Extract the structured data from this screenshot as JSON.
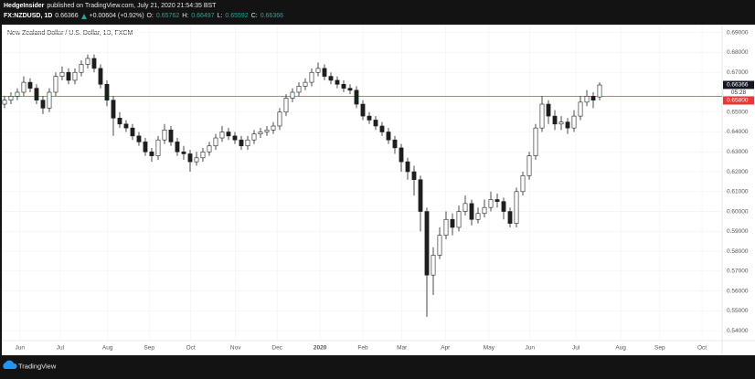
{
  "header": {
    "author": "HedgeInsider",
    "published": "published on TradingView.com, July 21, 2020 21:54:35 BST",
    "symbol": "FX:NZDUSD, 1D",
    "last": "0.66366",
    "change": "+0.00604 (+0.92%)",
    "open_label": "O:",
    "open": "0.65762",
    "high_label": "H:",
    "high": "0.66497",
    "low_label": "L:",
    "low": "0.65592",
    "close_label": "C:",
    "close": "0.66366"
  },
  "footer": {
    "brand": "TradingView"
  },
  "chart_data": {
    "type": "candlestick",
    "title": "New Zealand Dollar / U.S. Dollar, 1D, FXCM",
    "up_color": "#ffffff",
    "down_color": "#1e1e1e",
    "wick_color": "#1e1e1e",
    "grid": true,
    "ylim": [
      0.535,
      0.694
    ],
    "xlim": [
      -0.71,
      112.14
    ],
    "yticks": [
      {
        "value": 0.69,
        "label": "0.69000"
      },
      {
        "value": 0.68,
        "label": "0.68000"
      },
      {
        "value": 0.67,
        "label": "0.67000"
      },
      {
        "value": 0.65,
        "label": "0.65000"
      },
      {
        "value": 0.64,
        "label": "0.64000"
      },
      {
        "value": 0.63,
        "label": "0.63000"
      },
      {
        "value": 0.62,
        "label": "0.62000"
      },
      {
        "value": 0.61,
        "label": "0.61000"
      },
      {
        "value": 0.6,
        "label": "0.60000"
      },
      {
        "value": 0.59,
        "label": "0.59000"
      },
      {
        "value": 0.58,
        "label": "0.58000"
      },
      {
        "value": 0.57,
        "label": "0.57000"
      },
      {
        "value": 0.56,
        "label": "0.56000"
      },
      {
        "value": 0.55,
        "label": "0.55000"
      },
      {
        "value": 0.54,
        "label": "0.54000"
      }
    ],
    "xticks": [
      {
        "value": 2.4,
        "label": "Jun"
      },
      {
        "value": 8.7,
        "label": "Jul"
      },
      {
        "value": 16.1,
        "label": "Aug"
      },
      {
        "value": 22.6,
        "label": "Sep"
      },
      {
        "value": 29.1,
        "label": "Oct"
      },
      {
        "value": 36.1,
        "label": "Nov"
      },
      {
        "value": 42.6,
        "label": "Dec"
      },
      {
        "value": 49.3,
        "label": "2020"
      },
      {
        "value": 56,
        "label": "Feb"
      },
      {
        "value": 62.1,
        "label": "Mar"
      },
      {
        "value": 68.9,
        "label": "Apr"
      },
      {
        "value": 75.7,
        "label": "May"
      },
      {
        "value": 82.1,
        "label": "Jun"
      },
      {
        "value": 89.3,
        "label": "Jul"
      },
      {
        "value": 96.3,
        "label": "Aug"
      },
      {
        "value": 102.4,
        "label": "Sep"
      },
      {
        "value": 109,
        "label": "Oct"
      }
    ],
    "hline": {
      "value": 0.658,
      "label": "0.65800",
      "color": "#e53935"
    },
    "last_price": {
      "value": 0.66366,
      "label": "0.66366"
    },
    "countdown": "05:28",
    "ohlc": [
      [
        0.654,
        0.658,
        0.652,
        0.656
      ],
      [
        0.656,
        0.66,
        0.654,
        0.658
      ],
      [
        0.658,
        0.662,
        0.656,
        0.66
      ],
      [
        0.66,
        0.668,
        0.658,
        0.665
      ],
      [
        0.665,
        0.667,
        0.66,
        0.662
      ],
      [
        0.662,
        0.664,
        0.654,
        0.656
      ],
      [
        0.656,
        0.658,
        0.649,
        0.652
      ],
      [
        0.652,
        0.662,
        0.65,
        0.66
      ],
      [
        0.66,
        0.67,
        0.658,
        0.668
      ],
      [
        0.668,
        0.673,
        0.666,
        0.67
      ],
      [
        0.67,
        0.672,
        0.664,
        0.666
      ],
      [
        0.666,
        0.672,
        0.664,
        0.67
      ],
      [
        0.67,
        0.676,
        0.668,
        0.674
      ],
      [
        0.674,
        0.679,
        0.672,
        0.677
      ],
      [
        0.677,
        0.679,
        0.67,
        0.672
      ],
      [
        0.672,
        0.674,
        0.662,
        0.664
      ],
      [
        0.664,
        0.666,
        0.653,
        0.656
      ],
      [
        0.656,
        0.658,
        0.638,
        0.647
      ],
      [
        0.647,
        0.65,
        0.642,
        0.644
      ],
      [
        0.644,
        0.646,
        0.64,
        0.642
      ],
      [
        0.642,
        0.644,
        0.636,
        0.638
      ],
      [
        0.638,
        0.64,
        0.633,
        0.635
      ],
      [
        0.635,
        0.637,
        0.628,
        0.63
      ],
      [
        0.63,
        0.632,
        0.625,
        0.628
      ],
      [
        0.628,
        0.638,
        0.626,
        0.636
      ],
      [
        0.636,
        0.644,
        0.634,
        0.641
      ],
      [
        0.641,
        0.643,
        0.633,
        0.635
      ],
      [
        0.635,
        0.637,
        0.628,
        0.63
      ],
      [
        0.63,
        0.633,
        0.626,
        0.629
      ],
      [
        0.629,
        0.631,
        0.62,
        0.625
      ],
      [
        0.625,
        0.63,
        0.623,
        0.627
      ],
      [
        0.627,
        0.632,
        0.625,
        0.63
      ],
      [
        0.63,
        0.635,
        0.628,
        0.633
      ],
      [
        0.633,
        0.639,
        0.631,
        0.637
      ],
      [
        0.637,
        0.643,
        0.635,
        0.64
      ],
      [
        0.64,
        0.642,
        0.636,
        0.638
      ],
      [
        0.638,
        0.64,
        0.634,
        0.636
      ],
      [
        0.636,
        0.638,
        0.631,
        0.633
      ],
      [
        0.633,
        0.638,
        0.631,
        0.636
      ],
      [
        0.636,
        0.641,
        0.634,
        0.639
      ],
      [
        0.639,
        0.642,
        0.637,
        0.64
      ],
      [
        0.64,
        0.643,
        0.638,
        0.641
      ],
      [
        0.641,
        0.645,
        0.639,
        0.643
      ],
      [
        0.643,
        0.652,
        0.641,
        0.65
      ],
      [
        0.65,
        0.659,
        0.648,
        0.657
      ],
      [
        0.657,
        0.662,
        0.655,
        0.66
      ],
      [
        0.66,
        0.665,
        0.658,
        0.663
      ],
      [
        0.663,
        0.667,
        0.661,
        0.665
      ],
      [
        0.665,
        0.672,
        0.663,
        0.67
      ],
      [
        0.67,
        0.675,
        0.668,
        0.672
      ],
      [
        0.672,
        0.674,
        0.666,
        0.668
      ],
      [
        0.668,
        0.67,
        0.664,
        0.666
      ],
      [
        0.666,
        0.668,
        0.662,
        0.664
      ],
      [
        0.664,
        0.666,
        0.66,
        0.662
      ],
      [
        0.662,
        0.664,
        0.659,
        0.661
      ],
      [
        0.661,
        0.663,
        0.652,
        0.654
      ],
      [
        0.654,
        0.656,
        0.646,
        0.648
      ],
      [
        0.648,
        0.65,
        0.644,
        0.646
      ],
      [
        0.646,
        0.648,
        0.641,
        0.643
      ],
      [
        0.643,
        0.645,
        0.638,
        0.64
      ],
      [
        0.64,
        0.642,
        0.634,
        0.636
      ],
      [
        0.636,
        0.638,
        0.629,
        0.632
      ],
      [
        0.632,
        0.634,
        0.62,
        0.625
      ],
      [
        0.625,
        0.627,
        0.616,
        0.62
      ],
      [
        0.62,
        0.623,
        0.608,
        0.616
      ],
      [
        0.616,
        0.618,
        0.59,
        0.6
      ],
      [
        0.6,
        0.602,
        0.547,
        0.568
      ],
      [
        0.568,
        0.582,
        0.558,
        0.578
      ],
      [
        0.578,
        0.592,
        0.576,
        0.588
      ],
      [
        0.588,
        0.6,
        0.586,
        0.596
      ],
      [
        0.596,
        0.599,
        0.588,
        0.592
      ],
      [
        0.592,
        0.603,
        0.59,
        0.6
      ],
      [
        0.6,
        0.608,
        0.598,
        0.604
      ],
      [
        0.604,
        0.606,
        0.593,
        0.596
      ],
      [
        0.596,
        0.602,
        0.594,
        0.599
      ],
      [
        0.599,
        0.606,
        0.597,
        0.602
      ],
      [
        0.602,
        0.61,
        0.6,
        0.606
      ],
      [
        0.606,
        0.609,
        0.602,
        0.605
      ],
      [
        0.605,
        0.607,
        0.596,
        0.6
      ],
      [
        0.6,
        0.602,
        0.592,
        0.594
      ],
      [
        0.594,
        0.612,
        0.592,
        0.61
      ],
      [
        0.61,
        0.62,
        0.608,
        0.618
      ],
      [
        0.618,
        0.63,
        0.616,
        0.628
      ],
      [
        0.628,
        0.644,
        0.626,
        0.642
      ],
      [
        0.642,
        0.658,
        0.64,
        0.654
      ],
      [
        0.654,
        0.656,
        0.644,
        0.648
      ],
      [
        0.648,
        0.651,
        0.641,
        0.644
      ],
      [
        0.644,
        0.648,
        0.641,
        0.645
      ],
      [
        0.645,
        0.647,
        0.639,
        0.642
      ],
      [
        0.642,
        0.651,
        0.64,
        0.648
      ],
      [
        0.648,
        0.658,
        0.646,
        0.655
      ],
      [
        0.655,
        0.661,
        0.653,
        0.658
      ],
      [
        0.658,
        0.66,
        0.652,
        0.656
      ],
      [
        0.65762,
        0.66497,
        0.65592,
        0.66366
      ]
    ]
  }
}
